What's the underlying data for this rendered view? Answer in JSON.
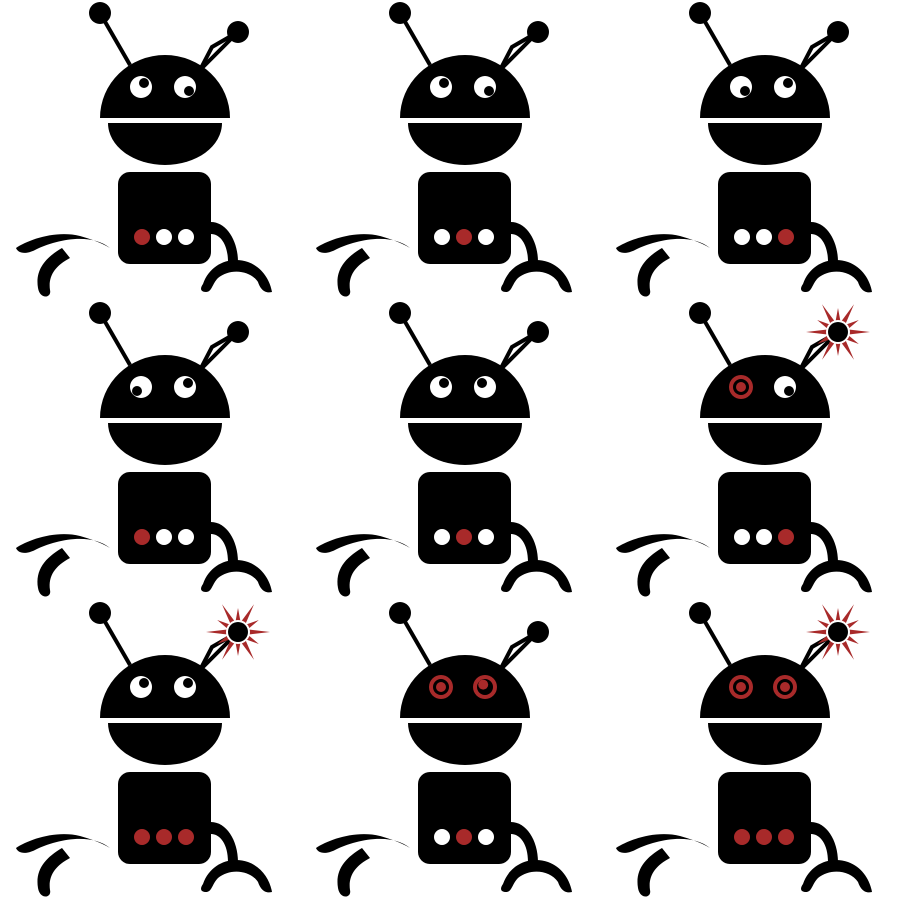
{
  "sprite_sheet": {
    "grid": {
      "columns": 3,
      "rows": 3
    },
    "colors": {
      "body": "#000000",
      "background": "#ffffff",
      "eye_white": "#ffffff",
      "accent_red": "#a82a2a",
      "spark": "#a82a2a",
      "mouth_divider": "#ffffff"
    },
    "frames": [
      {
        "left_eye": "normal",
        "right_eye": "normal",
        "pupil_left": "upper-right",
        "pupil_right": "lower-right",
        "spark": false,
        "lights": [
          "red",
          "white",
          "white"
        ]
      },
      {
        "left_eye": "normal",
        "right_eye": "normal",
        "pupil_left": "upper-right",
        "pupil_right": "lower-right",
        "spark": false,
        "lights": [
          "white",
          "red",
          "white"
        ]
      },
      {
        "left_eye": "normal",
        "right_eye": "normal",
        "pupil_left": "lower-right",
        "pupil_right": "upper-right",
        "spark": false,
        "lights": [
          "white",
          "white",
          "red"
        ]
      },
      {
        "left_eye": "normal",
        "right_eye": "normal",
        "pupil_left": "lower-left",
        "pupil_right": "upper-right",
        "spark": false,
        "lights": [
          "red",
          "white",
          "white"
        ]
      },
      {
        "left_eye": "normal",
        "right_eye": "normal",
        "pupil_left": "upper-right",
        "pupil_right": "upper-left",
        "spark": false,
        "lights": [
          "white",
          "red",
          "white"
        ]
      },
      {
        "left_eye": "red",
        "right_eye": "normal",
        "pupil_left": "center",
        "pupil_right": "lower-right",
        "spark": true,
        "lights": [
          "white",
          "white",
          "red"
        ]
      },
      {
        "left_eye": "normal",
        "right_eye": "normal",
        "pupil_left": "upper-right",
        "pupil_right": "upper-right",
        "spark": true,
        "lights": [
          "red",
          "red",
          "red"
        ]
      },
      {
        "left_eye": "red",
        "right_eye": "red",
        "pupil_left": "center",
        "pupil_right": "upper-left",
        "spark": false,
        "lights": [
          "white",
          "red",
          "white"
        ]
      },
      {
        "left_eye": "red",
        "right_eye": "red",
        "pupil_left": "center",
        "pupil_right": "center",
        "spark": true,
        "lights": [
          "red",
          "red",
          "red"
        ]
      }
    ]
  }
}
